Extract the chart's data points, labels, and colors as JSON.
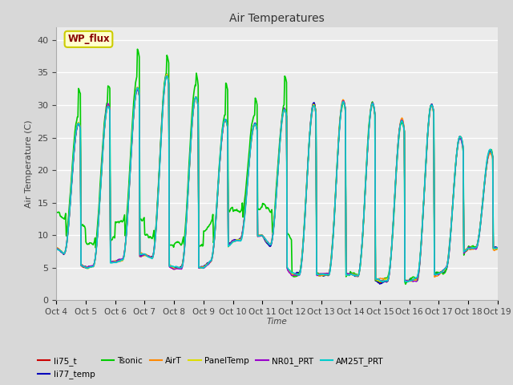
{
  "title": "Air Temperatures",
  "xlabel": "Time",
  "ylabel": "Air Temperature (C)",
  "ylim": [
    0,
    42
  ],
  "background_color": "#d8d8d8",
  "plot_bg_color": "#ebebeb",
  "grid_color": "white",
  "annotation_text": "WP_flux",
  "annotation_bg": "#ffffcc",
  "annotation_border": "#cccc00",
  "series": [
    {
      "name": "li75_t",
      "color": "#cc0000",
      "lw": 1.0
    },
    {
      "name": "li77_temp",
      "color": "#0000bb",
      "lw": 1.0
    },
    {
      "name": "Tsonic",
      "color": "#00cc00",
      "lw": 1.2
    },
    {
      "name": "AirT",
      "color": "#ff8800",
      "lw": 1.0
    },
    {
      "name": "PanelTemp",
      "color": "#dddd00",
      "lw": 1.0
    },
    {
      "name": "NR01_PRT",
      "color": "#9900cc",
      "lw": 1.0
    },
    {
      "name": "AM25T_PRT",
      "color": "#00cccc",
      "lw": 1.2
    }
  ],
  "xtick_labels": [
    "Oct 4",
    "Oct 5",
    "Oct 6",
    "Oct 7",
    "Oct 8",
    "Oct 9",
    "Oct 10",
    "Oct 11",
    "Oct 12",
    "Oct 13",
    "Oct 14",
    "Oct 15",
    "Oct 16",
    "Oct 17",
    "Oct 18",
    "Oct 19"
  ],
  "ytick_values": [
    0,
    5,
    10,
    15,
    20,
    25,
    30,
    35,
    40
  ]
}
